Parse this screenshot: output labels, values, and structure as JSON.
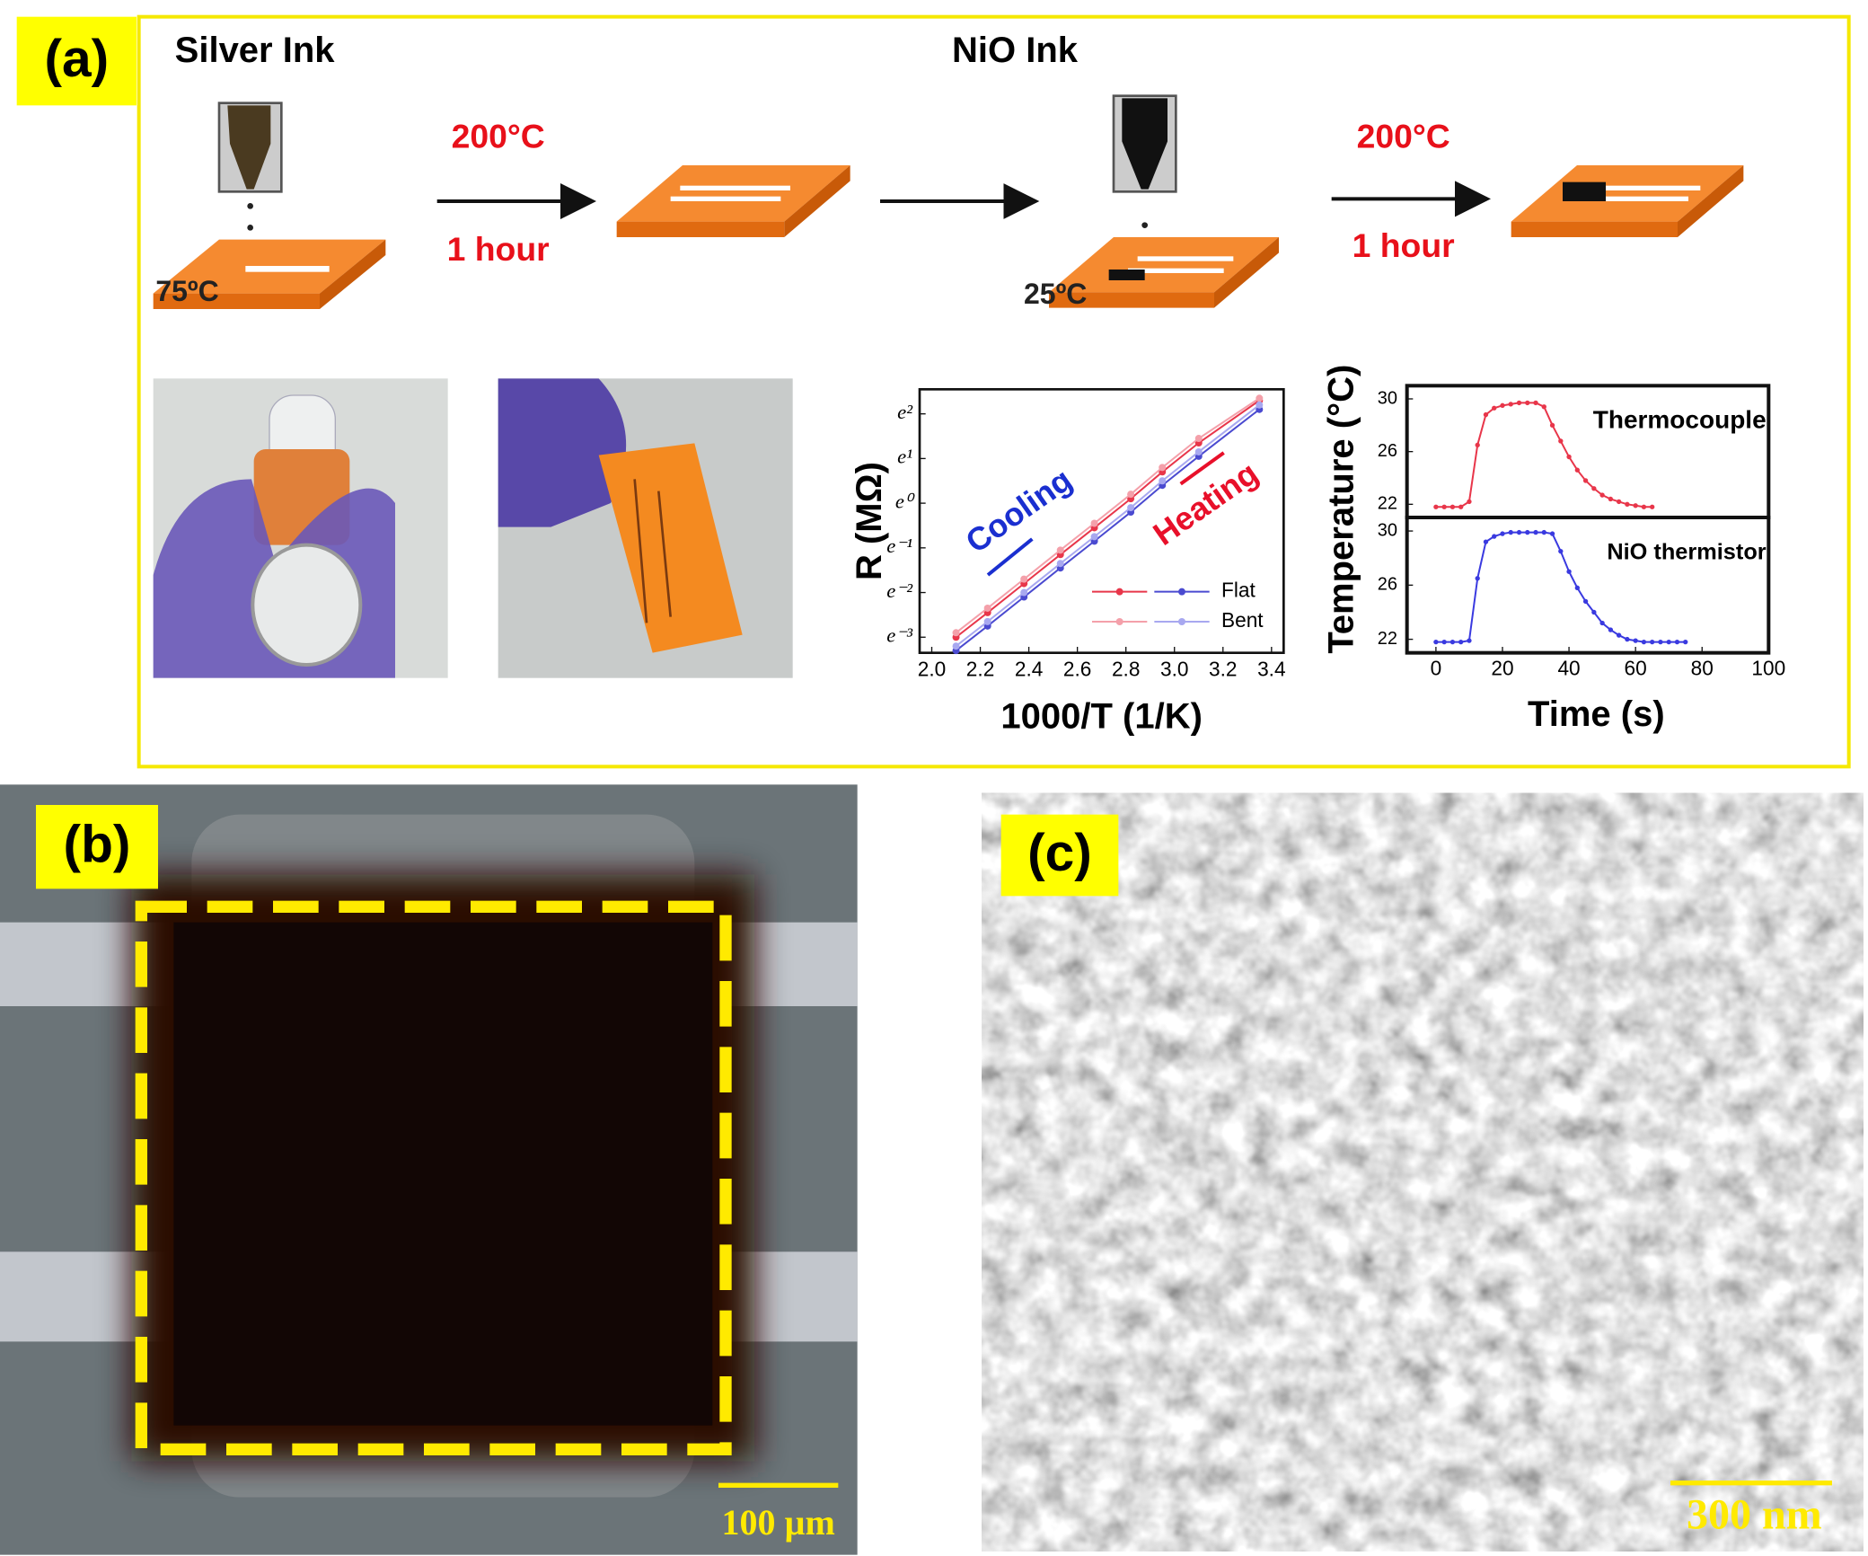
{
  "panel_a": {
    "label": "(a)",
    "silver_ink": "Silver Ink",
    "nio_ink": "NiO Ink",
    "step1_temp": "200°C",
    "step1_time": "1 hour",
    "step2_temp": "200°C",
    "step2_time": "1 hour",
    "substrate1_temp": "75ºC",
    "substrate2_temp": "25ºC"
  },
  "panel_b": {
    "label": "(b)",
    "scale_bar": "100 µm"
  },
  "panel_c": {
    "label": "(c)",
    "scale_bar": "300 nm"
  },
  "chart_data": [
    {
      "type": "scatter",
      "x_label": "1000/T (1/K)",
      "y_label": "R (MΩ)",
      "x": [
        2.1,
        2.23,
        2.38,
        2.53,
        2.67,
        2.82,
        2.95,
        3.1,
        3.35
      ],
      "series": [
        {
          "name": "Flat",
          "color": "#e8364a",
          "values": [
            -3.0,
            -2.45,
            -1.8,
            -1.15,
            -0.55,
            0.1,
            0.7,
            1.35,
            2.3
          ]
        },
        {
          "name": "Flat",
          "color": "#4a4ad0",
          "values": [
            -3.3,
            -2.75,
            -2.1,
            -1.45,
            -0.85,
            -0.2,
            0.4,
            1.05,
            2.1
          ]
        },
        {
          "name": "Bent",
          "color": "#f4a0aa",
          "values": [
            -2.9,
            -2.35,
            -1.7,
            -1.05,
            -0.45,
            0.2,
            0.8,
            1.45,
            2.35
          ]
        },
        {
          "name": "Bent",
          "color": "#a8a8f0",
          "values": [
            -3.2,
            -2.65,
            -2.0,
            -1.35,
            -0.75,
            -0.1,
            0.5,
            1.15,
            2.2
          ]
        }
      ],
      "annotations": [
        {
          "text": "Cooling",
          "color": "#1a2fd0"
        },
        {
          "text": "Heating",
          "color": "#e8102a"
        }
      ],
      "xlim": [
        1.95,
        3.45
      ],
      "ylim": [
        -3.35,
        2.55
      ],
      "xticks": [
        {
          "value": 2.0,
          "label": "2.0"
        },
        2.2,
        2.4,
        2.6,
        2.8,
        {
          "value": 3.0,
          "label": "3.0"
        },
        3.2,
        3.4
      ],
      "yticks": [
        {
          "value": -3,
          "label": "e⁻³"
        },
        {
          "value": -2,
          "label": "e⁻²"
        },
        {
          "value": -1,
          "label": "e⁻¹"
        },
        {
          "value": 0,
          "label": "e⁰"
        },
        {
          "value": 1,
          "label": "e¹"
        },
        {
          "value": 2,
          "label": "e²"
        }
      ]
    },
    {
      "type": "line",
      "x_label": "Time (s)",
      "y_label": "Temperature (°C)",
      "x": [
        0,
        2.5,
        5,
        7.5,
        10,
        12.5,
        15,
        17.5,
        20,
        22.5,
        25,
        27.5,
        30,
        32.5,
        35,
        37.5,
        40,
        42.5,
        45,
        47.5,
        50,
        52.5,
        55,
        57.5,
        60,
        62.5,
        65,
        67.5,
        70,
        72.5,
        75
      ],
      "series": [
        {
          "name": "Thermocouple",
          "color": "#e8364a",
          "values": [
            21.8,
            21.8,
            21.8,
            21.8,
            22.2,
            26.5,
            28.8,
            29.3,
            29.5,
            29.6,
            29.7,
            29.7,
            29.7,
            29.4,
            28.0,
            26.8,
            25.6,
            24.6,
            23.8,
            23.2,
            22.7,
            22.4,
            22.2,
            22.0,
            21.9,
            21.8,
            21.8,
            null,
            null,
            null,
            null
          ]
        },
        {
          "name": "NiO thermistor",
          "color": "#3a3ae0",
          "values": [
            21.8,
            21.8,
            21.8,
            21.8,
            21.9,
            26.5,
            29.2,
            29.6,
            29.8,
            29.9,
            29.9,
            29.9,
            29.9,
            29.9,
            29.8,
            28.5,
            27.0,
            25.8,
            24.8,
            24.0,
            23.2,
            22.7,
            22.3,
            22.0,
            21.9,
            21.8,
            21.8,
            21.8,
            21.8,
            21.8,
            21.8
          ]
        }
      ],
      "xlim": [
        -8.7,
        100
      ],
      "ylim": [
        21,
        31
      ],
      "xticks": [
        0,
        20,
        40,
        60,
        80,
        100
      ],
      "yticks": [
        22,
        26,
        30
      ]
    }
  ]
}
